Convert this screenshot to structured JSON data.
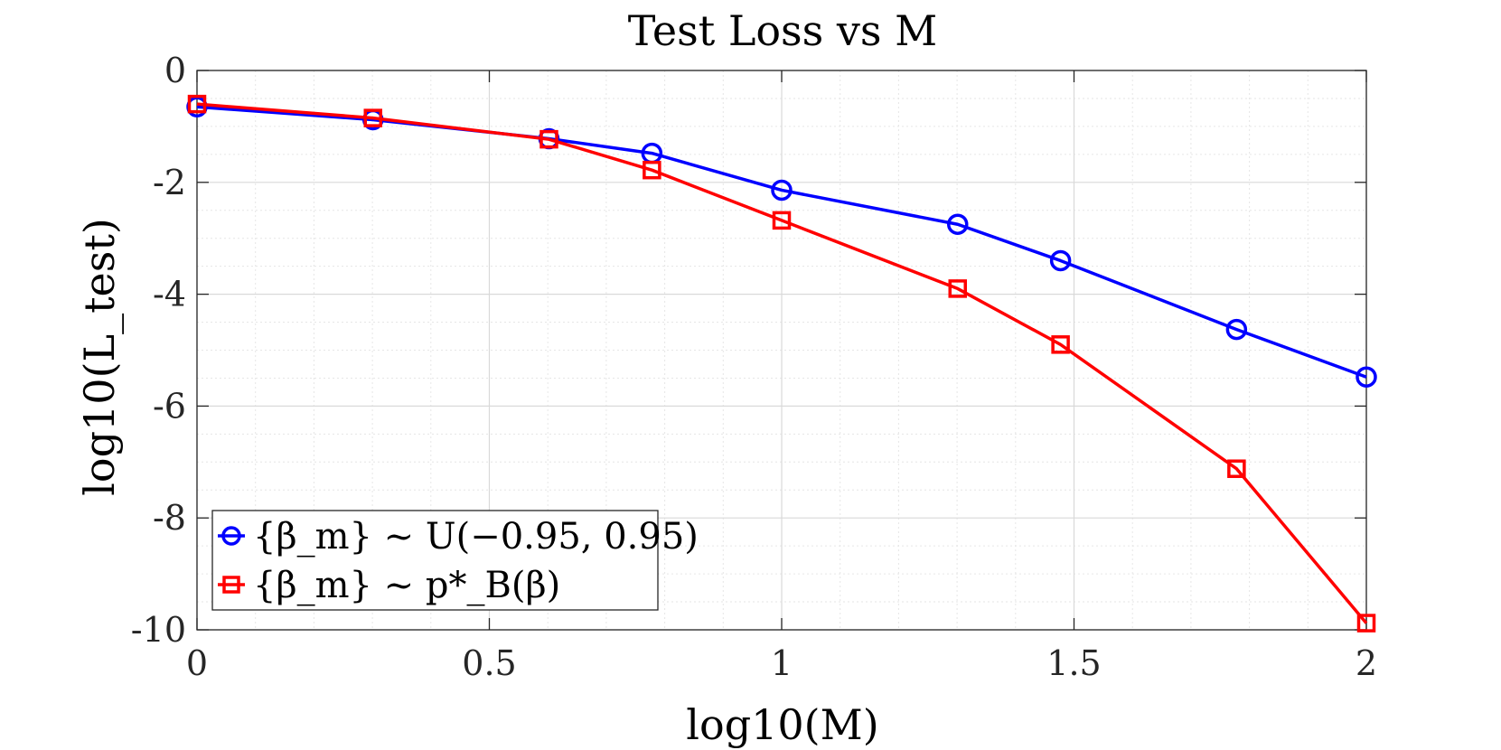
{
  "chart_data": {
    "type": "line",
    "title": "Test Loss vs M",
    "xlabel": "log10(M)",
    "ylabel": "log10(L_test)",
    "xlim": [
      0,
      2
    ],
    "ylim": [
      -10,
      0
    ],
    "x_ticks": [
      0,
      0.5,
      1,
      1.5,
      2
    ],
    "x_tick_labels": [
      "0",
      "0.5",
      "1",
      "1.5",
      "2"
    ],
    "y_ticks": [
      0,
      -2,
      -4,
      -6,
      -8,
      -10
    ],
    "y_tick_labels": [
      "0",
      "-2",
      "-4",
      "-6",
      "-8",
      "-10"
    ],
    "grid": true,
    "minor_grid": true,
    "legend_location": "bottom-left",
    "x": [
      0,
      0.301,
      0.602,
      0.778,
      1.0,
      1.301,
      1.477,
      1.778,
      2.0
    ],
    "series": [
      {
        "name": "{β_m} ~ U(−0.95, 0.95)",
        "color": "#0000ff",
        "marker": "circle",
        "values": [
          -0.65,
          -0.88,
          -1.22,
          -1.48,
          -2.14,
          -2.75,
          -3.4,
          -4.63,
          -5.48
        ]
      },
      {
        "name": "{β_m} ~ p*_B(β)",
        "color": "#ff0000",
        "marker": "square",
        "values": [
          -0.6,
          -0.85,
          -1.23,
          -1.78,
          -2.68,
          -3.9,
          -4.9,
          -7.12,
          -9.88
        ]
      }
    ]
  }
}
